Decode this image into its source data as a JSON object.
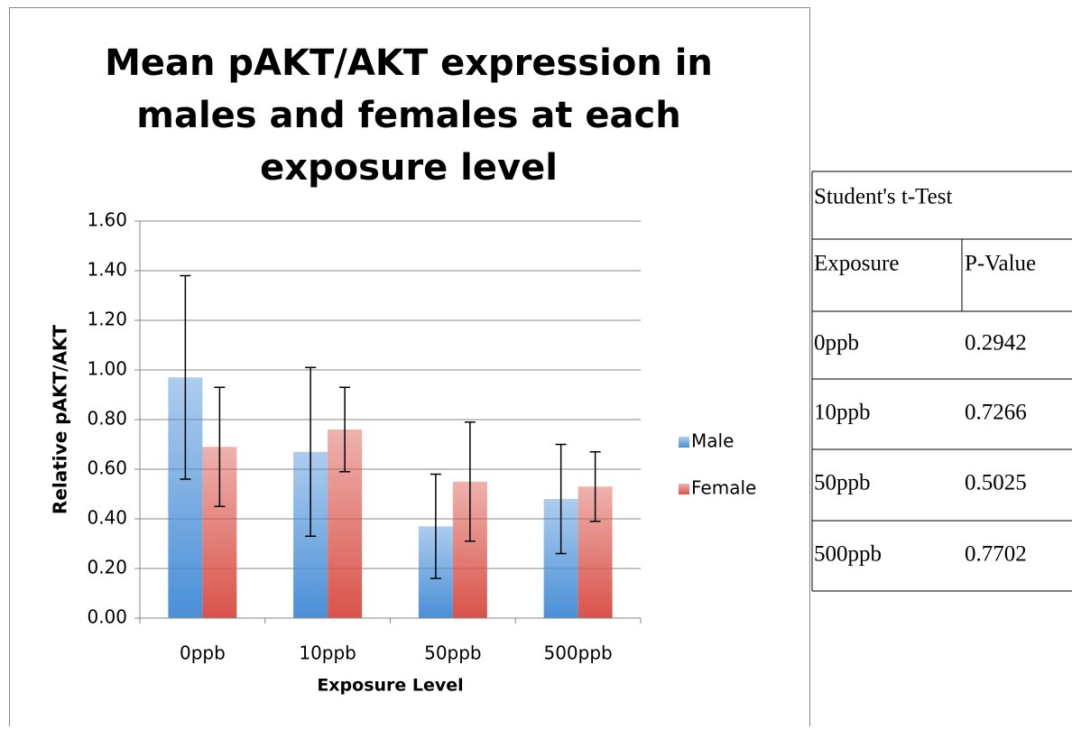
{
  "chart_data": {
    "type": "bar",
    "title": [
      "Mean pAKT/AKT expression in",
      "males and females at each",
      "exposure level"
    ],
    "x_label": "Exposure Level",
    "y_label": "Relative pAKT/AKT",
    "categories": [
      "0ppb",
      "10ppb",
      "50ppb",
      "500ppb"
    ],
    "series": [
      {
        "name": "Male",
        "color": "#4a8fd8",
        "values": [
          0.97,
          0.67,
          0.37,
          0.48
        ],
        "errors": [
          0.41,
          0.34,
          0.21,
          0.22
        ]
      },
      {
        "name": "Female",
        "color": "#d9534a",
        "values": [
          0.69,
          0.76,
          0.55,
          0.53
        ],
        "errors": [
          0.24,
          0.17,
          0.24,
          0.14
        ]
      }
    ],
    "ylim": [
      0,
      1.6
    ],
    "yticks": [
      {
        "value": 0,
        "label": "0.00"
      },
      {
        "value": 0.2,
        "label": "0.20"
      },
      {
        "value": 0.4,
        "label": "0.40"
      },
      {
        "value": 0.6,
        "label": "0.60"
      },
      {
        "value": 0.8,
        "label": "0.80"
      },
      {
        "value": 1.0,
        "label": "1.00"
      },
      {
        "value": 1.2,
        "label": "1.20"
      },
      {
        "value": 1.4,
        "label": "1.40"
      },
      {
        "value": 1.6,
        "label": "1.60"
      }
    ],
    "grid": true,
    "legend": "right"
  },
  "table": {
    "title": "Student's t-Test",
    "header": [
      "Exposure",
      "P-Value"
    ],
    "rows": [
      [
        "0ppb",
        "0.2942"
      ],
      [
        "10ppb",
        "0.7266"
      ],
      [
        "50ppb",
        "0.5025"
      ],
      [
        "500ppb",
        "0.7702"
      ]
    ]
  }
}
